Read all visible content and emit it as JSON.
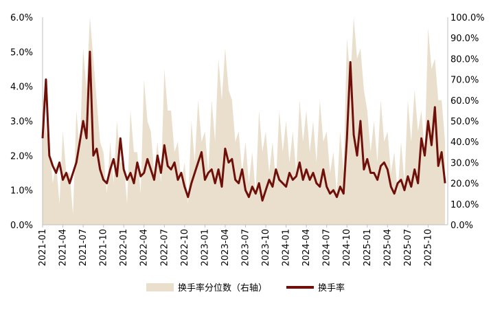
{
  "chart_data": {
    "type": "line",
    "title": "",
    "xlabel": "",
    "x_ticks": [
      "2021-01",
      "2021-04",
      "2021-07",
      "2021-10",
      "2022-01",
      "2022-04",
      "2022-07",
      "2022-10",
      "2023-01",
      "2023-04",
      "2023-07",
      "2023-10",
      "2024-01",
      "2024-04",
      "2024-07",
      "2024-10",
      "2025-01",
      "2025-04",
      "2025-07",
      "2025-10"
    ],
    "y_left": {
      "ylim": [
        0,
        6.0
      ],
      "ticks": [
        "0.0%",
        "1.0%",
        "2.0%",
        "3.0%",
        "4.0%",
        "5.0%",
        "6.0%"
      ]
    },
    "y_right": {
      "ylim": [
        0,
        100
      ],
      "ticks": [
        "0.0%",
        "10.0%",
        "20.0%",
        "30.0%",
        "40.0%",
        "50.0%",
        "60.0%",
        "70.0%",
        "80.0%",
        "90.0%",
        "100.0%"
      ]
    },
    "grid": false,
    "legend_position": "bottom",
    "colors": {
      "percentile_area": "#e9dfcc",
      "turnover_line": "#6e0f0a"
    },
    "series": [
      {
        "name": "换手率分位数（右轴）",
        "axis": "right",
        "kind": "area",
        "x": [
          "2021-01",
          "2021-02",
          "2021-03",
          "2021-04",
          "2021-05",
          "2021-06",
          "2021-07",
          "2021-08",
          "2021-09",
          "2021-10",
          "2021-11",
          "2021-12",
          "2022-01",
          "2022-02",
          "2022-03",
          "2022-04",
          "2022-05",
          "2022-06",
          "2022-07",
          "2022-08",
          "2022-09",
          "2022-10",
          "2022-11",
          "2022-12",
          "2023-01",
          "2023-02",
          "2023-03",
          "2023-04",
          "2023-05",
          "2023-06",
          "2023-07",
          "2023-08",
          "2023-09",
          "2023-10",
          "2023-11",
          "2023-12",
          "2024-01",
          "2024-02",
          "2024-03",
          "2024-04",
          "2024-05",
          "2024-06",
          "2024-07",
          "2024-08",
          "2024-09",
          "2024-10",
          "2024-11",
          "2024-12",
          "2025-01",
          "2025-02",
          "2025-03",
          "2025-04",
          "2025-05",
          "2025-06",
          "2025-07",
          "2025-08",
          "2025-09",
          "2025-10",
          "2025-11",
          "2025-12"
        ],
        "values": [
          65,
          40,
          30,
          45,
          25,
          55,
          85,
          100,
          60,
          35,
          40,
          50,
          30,
          55,
          35,
          70,
          45,
          40,
          75,
          55,
          40,
          30,
          50,
          60,
          45,
          60,
          80,
          85,
          60,
          45,
          40,
          35,
          55,
          45,
          40,
          55,
          50,
          45,
          60,
          55,
          50,
          60,
          45,
          35,
          45,
          90,
          100,
          85,
          55,
          50,
          60,
          45,
          35,
          40,
          60,
          65,
          55,
          95,
          80,
          60
        ]
      },
      {
        "name": "换手率",
        "axis": "left",
        "kind": "line",
        "x": [
          "2021-01",
          "2021-01",
          "2021-02",
          "2021-02",
          "2021-03",
          "2021-03",
          "2021-04",
          "2021-04",
          "2021-05",
          "2021-05",
          "2021-06",
          "2021-06",
          "2021-07",
          "2021-07",
          "2021-08",
          "2021-08",
          "2021-09",
          "2021-09",
          "2021-10",
          "2021-10",
          "2021-11",
          "2021-11",
          "2021-12",
          "2021-12",
          "2022-01",
          "2022-01",
          "2022-02",
          "2022-02",
          "2022-03",
          "2022-03",
          "2022-04",
          "2022-04",
          "2022-05",
          "2022-05",
          "2022-06",
          "2022-06",
          "2022-07",
          "2022-07",
          "2022-08",
          "2022-08",
          "2022-09",
          "2022-09",
          "2022-10",
          "2022-10",
          "2022-11",
          "2022-11",
          "2022-12",
          "2022-12",
          "2023-01",
          "2023-01",
          "2023-02",
          "2023-02",
          "2023-03",
          "2023-03",
          "2023-04",
          "2023-04",
          "2023-05",
          "2023-05",
          "2023-06",
          "2023-06",
          "2023-07",
          "2023-07",
          "2023-08",
          "2023-08",
          "2023-09",
          "2023-09",
          "2023-10",
          "2023-10",
          "2023-11",
          "2023-11",
          "2023-12",
          "2023-12",
          "2024-01",
          "2024-01",
          "2024-02",
          "2024-02",
          "2024-03",
          "2024-03",
          "2024-04",
          "2024-04",
          "2024-05",
          "2024-05",
          "2024-06",
          "2024-06",
          "2024-07",
          "2024-07",
          "2024-08",
          "2024-08",
          "2024-09",
          "2024-09",
          "2024-10",
          "2024-10",
          "2024-11",
          "2024-11",
          "2024-12",
          "2024-12",
          "2025-01",
          "2025-01",
          "2025-02",
          "2025-02",
          "2025-03",
          "2025-03",
          "2025-04",
          "2025-04",
          "2025-05",
          "2025-05",
          "2025-06",
          "2025-06",
          "2025-07",
          "2025-07",
          "2025-08",
          "2025-08",
          "2025-09",
          "2025-09",
          "2025-10",
          "2025-10",
          "2025-11",
          "2025-11",
          "2025-12",
          "2025-12"
        ],
        "values": [
          2.5,
          4.2,
          2.0,
          1.7,
          1.5,
          1.8,
          1.3,
          1.5,
          1.2,
          1.5,
          1.8,
          2.4,
          3.0,
          2.5,
          5.0,
          2.0,
          2.2,
          1.6,
          1.3,
          1.2,
          1.6,
          1.9,
          1.4,
          2.5,
          1.6,
          1.3,
          1.5,
          1.2,
          1.8,
          1.4,
          1.5,
          1.9,
          1.6,
          1.3,
          2.0,
          1.5,
          2.3,
          1.7,
          1.6,
          1.8,
          1.3,
          1.5,
          1.1,
          0.8,
          1.2,
          1.5,
          1.8,
          2.1,
          1.3,
          1.5,
          1.6,
          1.2,
          1.6,
          1.1,
          2.2,
          1.8,
          1.9,
          1.3,
          1.2,
          1.6,
          1.0,
          0.8,
          1.1,
          0.9,
          1.2,
          0.7,
          1.0,
          1.3,
          1.1,
          1.6,
          1.3,
          1.2,
          1.1,
          1.5,
          1.3,
          1.4,
          1.8,
          1.3,
          1.6,
          1.3,
          1.5,
          1.2,
          1.1,
          1.6,
          1.1,
          0.9,
          1.0,
          0.8,
          1.1,
          0.9,
          2.5,
          4.7,
          2.6,
          2.0,
          3.0,
          1.6,
          1.9,
          1.5,
          1.5,
          1.3,
          1.7,
          1.8,
          1.6,
          1.1,
          0.9,
          1.2,
          1.3,
          1.0,
          1.4,
          1.1,
          1.6,
          1.2,
          2.5,
          2.0,
          3.0,
          2.3,
          3.4,
          1.7,
          2.1,
          1.2
        ]
      }
    ]
  }
}
